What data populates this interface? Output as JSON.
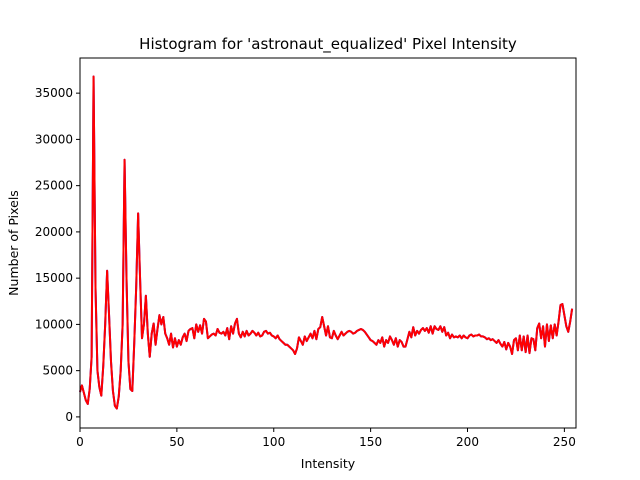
{
  "chart_data": {
    "type": "line",
    "title": "Histogram for 'astronaut_equalized' Pixel Intensity",
    "xlabel": "Intensity",
    "ylabel": "Number of Pixels",
    "xlim": [
      0,
      256
    ],
    "ylim": [
      -1200,
      38800
    ],
    "xticks": [
      0,
      50,
      100,
      150,
      200,
      250
    ],
    "yticks": [
      0,
      5000,
      10000,
      15000,
      20000,
      25000,
      30000,
      35000
    ],
    "grid": false,
    "legend": "none",
    "series": [
      {
        "color": "#0000ff",
        "values": [
          2700,
          3400,
          2600,
          1800,
          1400,
          3000,
          6500,
          36800,
          14000,
          5000,
          3200,
          2300,
          5500,
          10000,
          15800,
          11000,
          6000,
          2800,
          1200,
          900,
          2200,
          5000,
          10000,
          27800,
          15000,
          6000,
          3000,
          2800,
          8000,
          14000,
          22000,
          15000,
          8500,
          10000,
          13100,
          9000,
          6500,
          9000,
          10100,
          7800,
          9500,
          11000,
          10000,
          10800,
          9000,
          8500,
          7800,
          9000,
          7500,
          8500,
          7600,
          8300,
          7800,
          8600,
          9000,
          8200,
          9300,
          9500,
          9600,
          8500,
          10000,
          9200,
          9900,
          9000,
          10600,
          10300,
          8500,
          8700,
          8900,
          9000,
          8800,
          9500,
          9100,
          9000,
          9200,
          8800,
          9600,
          8400,
          9800,
          9000,
          10100,
          10600,
          9000,
          8600,
          9200,
          8700,
          9300,
          8800,
          9000,
          9300,
          9100,
          8800,
          9100,
          8700,
          8800,
          9200,
          9300,
          9000,
          9100,
          8800,
          8700,
          8500,
          8800,
          8400,
          8200,
          8000,
          7800,
          7800,
          7600,
          7400,
          7200,
          6800,
          7400,
          8600,
          8200,
          7800,
          8700,
          8200,
          8600,
          9000,
          8500,
          9300,
          8400,
          9500,
          9700,
          10800,
          9800,
          8800,
          9800,
          8600,
          8500,
          9300,
          8800,
          8400,
          8800,
          9200,
          8800,
          9000,
          9200,
          9300,
          9200,
          9000,
          9100,
          9300,
          9400,
          9500,
          9400,
          9200,
          8900,
          8600,
          8300,
          8200,
          8000,
          7800,
          8300,
          8000,
          8600,
          7600,
          8300,
          8000,
          8700,
          8300,
          7800,
          8500,
          7600,
          8300,
          8100,
          7600,
          7600,
          8400,
          9200,
          8600,
          9700,
          8800,
          9300,
          9000,
          9400,
          9600,
          9300,
          9600,
          9100,
          9800,
          9000,
          9800,
          9500,
          9400,
          9800,
          9200,
          9700,
          8800,
          9100,
          8500,
          8900,
          8600,
          8700,
          8600,
          8800,
          8500,
          8800,
          8600,
          8500,
          8800,
          8900,
          8700,
          8800,
          8800,
          8900,
          8700,
          8700,
          8600,
          8400,
          8500,
          8300,
          8400,
          8200,
          8000,
          8300,
          7900,
          7600,
          8100,
          7300,
          8000,
          7600,
          6800,
          8300,
          8500,
          7200,
          8800,
          7200,
          8700,
          7000,
          8800,
          6900,
          8500,
          8400,
          7200,
          9600,
          10100,
          8500,
          9800,
          7600,
          10000,
          8200,
          9900,
          8500,
          10000,
          8800,
          10300,
          12100,
          12200,
          11000,
          9800,
          9200,
          10300,
          11700
        ]
      },
      {
        "color": "#ff0000",
        "values": [
          2700,
          3400,
          2600,
          1800,
          1400,
          3000,
          6500,
          36800,
          14000,
          5000,
          3200,
          2300,
          5500,
          10000,
          15800,
          11000,
          6000,
          2800,
          1200,
          900,
          2200,
          5000,
          10000,
          27800,
          15000,
          6000,
          3000,
          2800,
          8000,
          14000,
          22000,
          15000,
          8500,
          10000,
          13100,
          9000,
          6500,
          9000,
          10100,
          7800,
          9500,
          11000,
          10000,
          10800,
          9000,
          8500,
          7800,
          9000,
          7500,
          8500,
          7600,
          8300,
          7800,
          8600,
          9000,
          8200,
          9300,
          9500,
          9600,
          8500,
          10000,
          9200,
          9900,
          9000,
          10600,
          10300,
          8500,
          8700,
          8900,
          9000,
          8800,
          9500,
          9100,
          9000,
          9200,
          8800,
          9600,
          8400,
          9800,
          9000,
          10100,
          10600,
          9000,
          8600,
          9200,
          8700,
          9300,
          8800,
          9000,
          9300,
          9100,
          8800,
          9100,
          8700,
          8800,
          9200,
          9300,
          9000,
          9100,
          8800,
          8700,
          8500,
          8800,
          8400,
          8200,
          8000,
          7800,
          7800,
          7600,
          7400,
          7200,
          6800,
          7400,
          8600,
          8200,
          7800,
          8700,
          8200,
          8600,
          9000,
          8500,
          9300,
          8400,
          9500,
          9700,
          10800,
          9800,
          8800,
          9800,
          8600,
          8500,
          9300,
          8800,
          8400,
          8800,
          9200,
          8800,
          9000,
          9200,
          9300,
          9200,
          9000,
          9100,
          9300,
          9400,
          9500,
          9400,
          9200,
          8900,
          8600,
          8300,
          8200,
          8000,
          7800,
          8300,
          8000,
          8600,
          7600,
          8300,
          8000,
          8700,
          8300,
          7800,
          8500,
          7600,
          8300,
          8100,
          7600,
          7600,
          8400,
          9200,
          8600,
          9700,
          8800,
          9300,
          9000,
          9400,
          9600,
          9300,
          9600,
          9100,
          9800,
          9000,
          9800,
          9500,
          9400,
          9800,
          9200,
          9700,
          8800,
          9100,
          8500,
          8900,
          8600,
          8700,
          8600,
          8800,
          8500,
          8800,
          8600,
          8500,
          8800,
          8900,
          8700,
          8800,
          8800,
          8900,
          8700,
          8700,
          8600,
          8400,
          8500,
          8300,
          8400,
          8200,
          8000,
          8300,
          7900,
          7600,
          8100,
          7300,
          8000,
          7600,
          6800,
          8300,
          8500,
          7200,
          8800,
          7200,
          8700,
          7000,
          8800,
          6900,
          8500,
          8400,
          7200,
          9600,
          10100,
          8500,
          9800,
          7600,
          10000,
          8200,
          9900,
          8500,
          10000,
          8800,
          10300,
          12100,
          12200,
          11000,
          9800,
          9200,
          10300,
          11700
        ]
      }
    ]
  }
}
